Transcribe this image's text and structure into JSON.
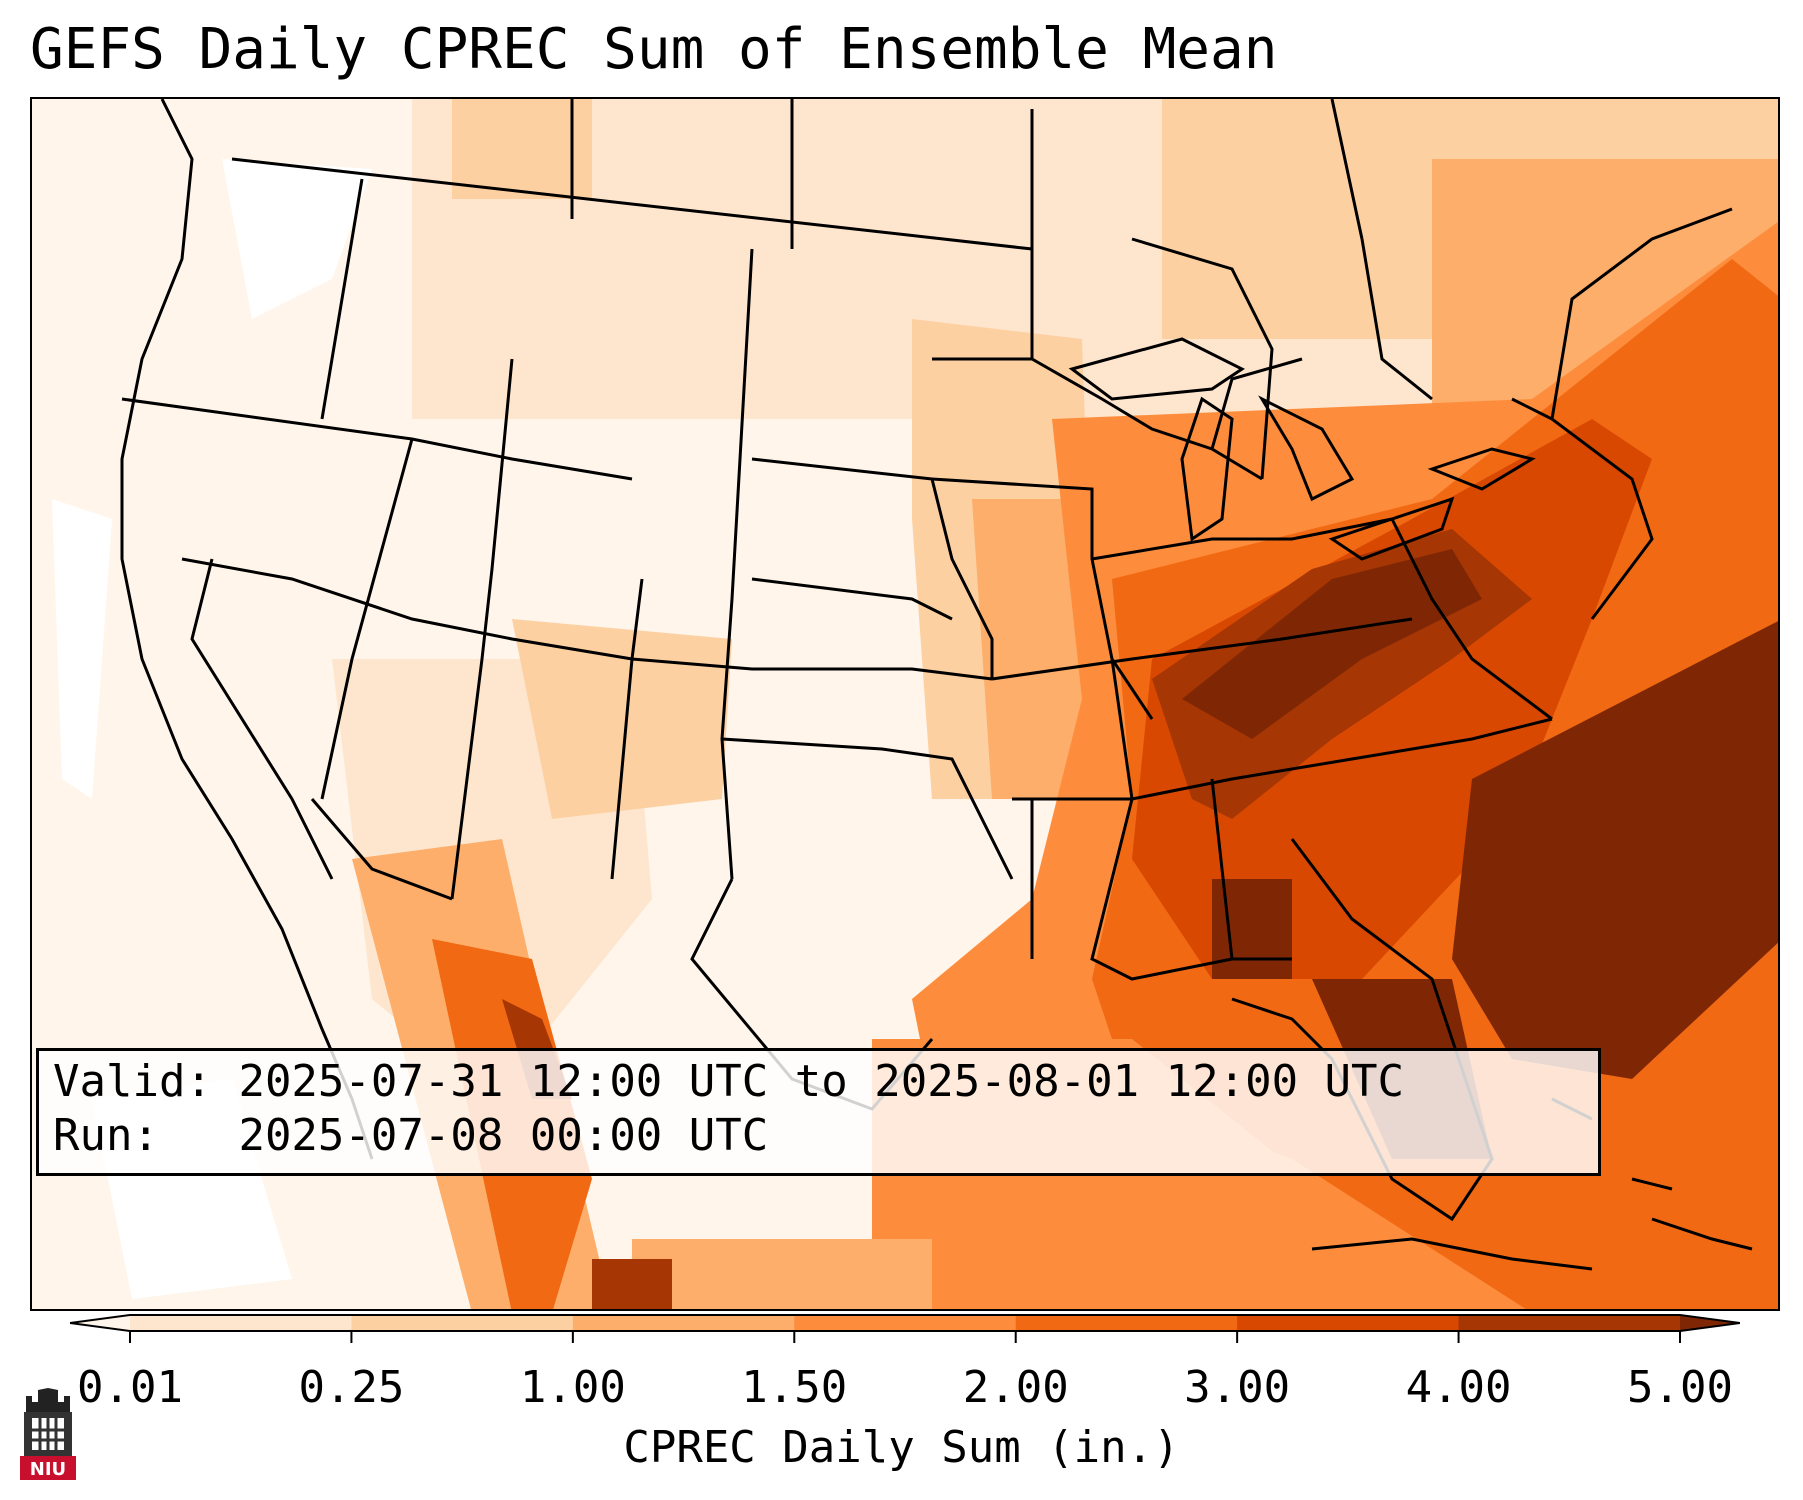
{
  "title": "GEFS Daily CPREC Sum of Ensemble Mean",
  "info": {
    "valid_label": "Valid:",
    "valid_value": "2025-07-31 12:00 UTC to 2025-08-01 12:00 UTC",
    "run_label": "Run:",
    "run_value": "2025-07-08 00:00 UTC"
  },
  "colorbar": {
    "label": "CPREC Daily Sum (in.)",
    "ticks": [
      "0.01",
      "0.25",
      "1.00",
      "1.50",
      "2.00",
      "3.00",
      "4.00",
      "5.00"
    ],
    "colors": [
      "#fff5eb",
      "#fee6ce",
      "#fdd0a2",
      "#fdae6b",
      "#fd8d3c",
      "#f16913",
      "#d94801",
      "#a63603",
      "#7f2704"
    ]
  },
  "logo": {
    "text": "NIU"
  }
}
